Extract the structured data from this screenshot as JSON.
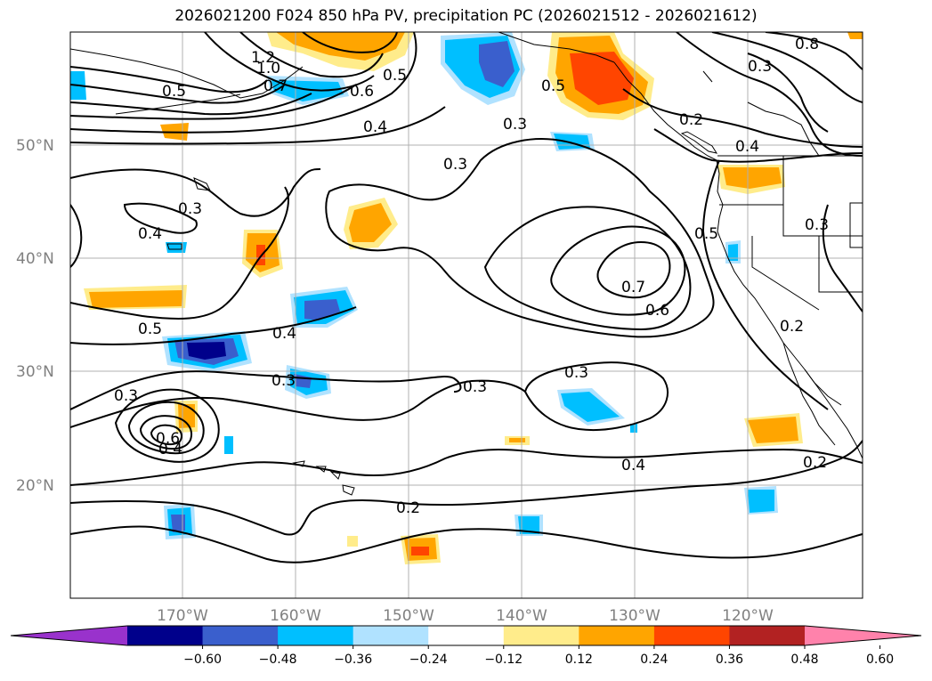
{
  "title": "2026021200 F024 850 hPa PV, precipitation PC (2026021512 - 2026021612)",
  "lat_labels": [
    "50°N",
    "40°N",
    "30°N",
    "20°N"
  ],
  "lon_labels": [
    "170°W",
    "160°W",
    "150°W",
    "140°W",
    "130°W",
    "120°W"
  ],
  "contour_labels": [
    "1.2",
    "1.0",
    "0.7",
    "0.6",
    "0.5",
    "0.4",
    "0.3",
    "0.3",
    "0.4",
    "0.3",
    "0.5",
    "0.4",
    "0.3",
    "0.3",
    "0.3",
    "0.6",
    "0.4",
    "0.2",
    "0.4",
    "0.7",
    "0.6",
    "0.5",
    "0.3",
    "0.2",
    "0.2",
    "0.3",
    "0.3",
    "0.5",
    "0.2",
    "0.4",
    "0.8",
    "0.5"
  ],
  "colorbar": {
    "ticks": [
      "−0.60",
      "−0.48",
      "−0.36",
      "−0.24",
      "−0.12",
      "0.12",
      "0.24",
      "0.36",
      "0.48",
      "0.60"
    ],
    "colors": [
      "#9932cc",
      "#00008b",
      "#3a5fcd",
      "#00bfff",
      "#b0e2ff",
      "#ffffff",
      "#ffec8b",
      "#ffa500",
      "#ff4500",
      "#b22222",
      "#ff82ab"
    ]
  },
  "shading_colors": {
    "orange": "#ffa500",
    "light_orange": "#ffec8b",
    "red": "#ff4500",
    "deep_sky_blue": "#00bfff",
    "light_blue": "#b0e2ff",
    "royal_blue": "#3a5fcd",
    "navy": "#00008b"
  }
}
